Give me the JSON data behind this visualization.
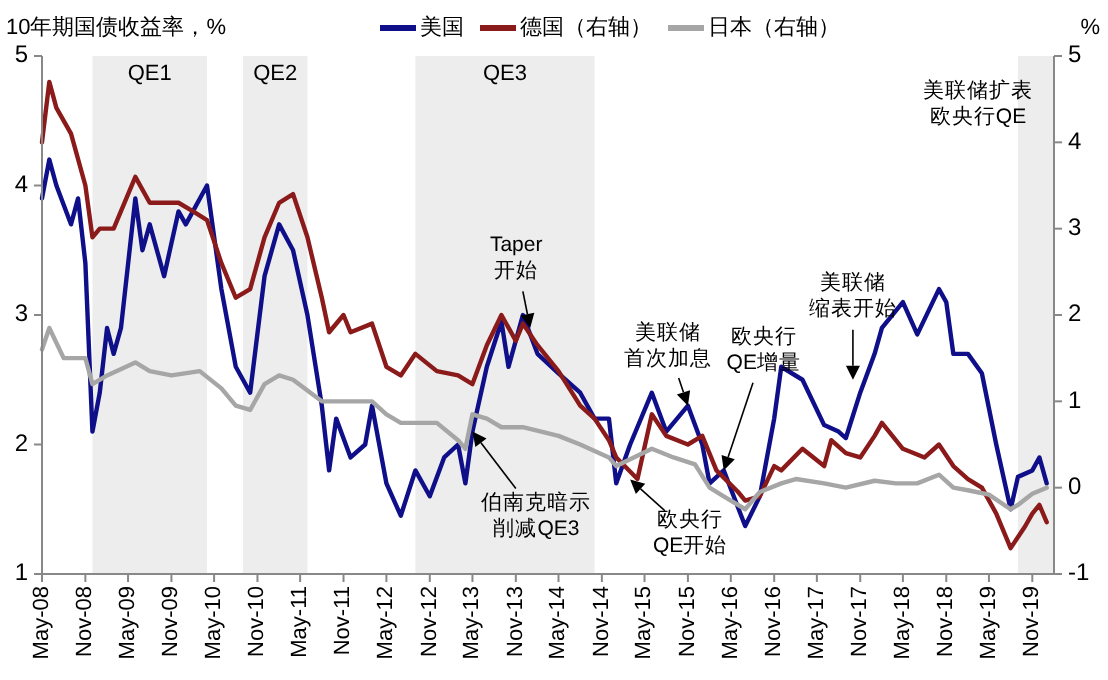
{
  "chart_data": {
    "type": "line",
    "ylabel": "10年期国债收益率，%",
    "y2label": "%",
    "xlim": [
      "2008-05-01",
      "2020-02-01"
    ],
    "xticks": [
      {
        "value": "2008-05",
        "label": "May-08"
      },
      {
        "value": "2008-11",
        "label": "Nov-08"
      },
      {
        "value": "2009-05",
        "label": "May-09"
      },
      {
        "value": "2009-11",
        "label": "Nov-09"
      },
      {
        "value": "2010-05",
        "label": "May-10"
      },
      {
        "value": "2010-11",
        "label": "Nov-10"
      },
      {
        "value": "2011-05",
        "label": "May-11"
      },
      {
        "value": "2011-11",
        "label": "Nov-11"
      },
      {
        "value": "2012-05",
        "label": "May-12"
      },
      {
        "value": "2012-11",
        "label": "Nov-12"
      },
      {
        "value": "2013-05",
        "label": "May-13"
      },
      {
        "value": "2013-11",
        "label": "Nov-13"
      },
      {
        "value": "2014-05",
        "label": "May-14"
      },
      {
        "value": "2014-11",
        "label": "Nov-14"
      },
      {
        "value": "2015-05",
        "label": "May-15"
      },
      {
        "value": "2015-11",
        "label": "Nov-15"
      },
      {
        "value": "2016-05",
        "label": "May-16"
      },
      {
        "value": "2016-11",
        "label": "Nov-16"
      },
      {
        "value": "2017-05",
        "label": "May-17"
      },
      {
        "value": "2017-11",
        "label": "Nov-17"
      },
      {
        "value": "2018-05",
        "label": "May-18"
      },
      {
        "value": "2018-11",
        "label": "Nov-18"
      },
      {
        "value": "2019-05",
        "label": "May-19"
      },
      {
        "value": "2019-11",
        "label": "Nov-19"
      }
    ],
    "ylim": [
      1,
      5
    ],
    "yticks": [
      1,
      2,
      3,
      4,
      5
    ],
    "y2lim": [
      -1,
      5
    ],
    "y2ticks": [
      -1,
      0,
      1,
      2,
      3,
      4,
      5
    ],
    "legend": "top",
    "grid": false,
    "bands": [
      {
        "axis": "x",
        "from": "2008-12",
        "to": "2010-04",
        "label": "QE1",
        "color": "#ededed"
      },
      {
        "axis": "x",
        "from": "2010-09",
        "to": "2011-06",
        "label": "QE2",
        "color": "#ededed"
      },
      {
        "axis": "x",
        "from": "2012-09",
        "to": "2014-10",
        "label": "QE3",
        "color": "#ededed"
      },
      {
        "axis": "x",
        "from": "2019-09",
        "to": "2020-02-01",
        "color": "#ededed"
      }
    ],
    "annotations": [
      {
        "text": "Taper开始",
        "x": "2014-01",
        "y": 2.9
      },
      {
        "text": "伯南克暗示削减QE3",
        "x": "2013-05",
        "y": 2.1
      },
      {
        "text": "美联储首次加息",
        "x": "2015-11",
        "y": 2.3
      },
      {
        "text": "欧央行QE增量",
        "x": "2016-04",
        "y": 1.8
      },
      {
        "text": "美联储缩表开始",
        "x": "2017-10",
        "y": 2.5
      },
      {
        "text": "欧央行QE开始",
        "x": "2015-03",
        "y": 1.73
      },
      "美联储扩表欧央行QE"
    ],
    "series": [
      {
        "name": "美国",
        "color": "#0f0f8a",
        "x": [
          "2008-05",
          "2008-06",
          "2008-07",
          "2008-09",
          "2008-10",
          "2008-11",
          "2008-12",
          "2009-01",
          "2009-02",
          "2009-03",
          "2009-04",
          "2009-06",
          "2009-07",
          "2009-08",
          "2009-10",
          "2009-12",
          "2010-01",
          "2010-04",
          "2010-06",
          "2010-08",
          "2010-10",
          "2010-12",
          "2011-02",
          "2011-04",
          "2011-06",
          "2011-08",
          "2011-09",
          "2011-10",
          "2011-12",
          "2012-02",
          "2012-03",
          "2012-05",
          "2012-07",
          "2012-09",
          "2012-11",
          "2013-01",
          "2013-03",
          "2013-04",
          "2013-05",
          "2013-07",
          "2013-09",
          "2013-10",
          "2013-12",
          "2014-02",
          "2014-05",
          "2014-08",
          "2014-10",
          "2014-12",
          "2015-01",
          "2015-03",
          "2015-06",
          "2015-08",
          "2015-11",
          "2016-01",
          "2016-02",
          "2016-04",
          "2016-07",
          "2016-09",
          "2016-11",
          "2016-12",
          "2017-03",
          "2017-06",
          "2017-08",
          "2017-09",
          "2017-11",
          "2018-01",
          "2018-02",
          "2018-05",
          "2018-07",
          "2018-10",
          "2018-11",
          "2018-12",
          "2019-02",
          "2019-04",
          "2019-06",
          "2019-08",
          "2019-09",
          "2019-11",
          "2019-12",
          "2020-01"
        ],
        "values": [
          3.9,
          4.2,
          4.0,
          3.7,
          3.9,
          3.4,
          2.1,
          2.4,
          2.9,
          2.7,
          2.9,
          3.9,
          3.5,
          3.7,
          3.3,
          3.8,
          3.7,
          4.0,
          3.2,
          2.6,
          2.4,
          3.3,
          3.7,
          3.5,
          3.0,
          2.3,
          1.8,
          2.2,
          1.9,
          2.0,
          2.3,
          1.7,
          1.45,
          1.8,
          1.6,
          1.9,
          2.0,
          1.7,
          2.1,
          2.6,
          2.95,
          2.6,
          3.0,
          2.7,
          2.55,
          2.4,
          2.2,
          2.2,
          1.7,
          2.0,
          2.4,
          2.1,
          2.3,
          2.0,
          1.7,
          1.8,
          1.37,
          1.6,
          2.2,
          2.6,
          2.5,
          2.15,
          2.1,
          2.05,
          2.4,
          2.7,
          2.9,
          3.1,
          2.85,
          3.2,
          3.1,
          2.7,
          2.7,
          2.55,
          2.0,
          1.5,
          1.75,
          1.8,
          1.9,
          1.7
        ]
      },
      {
        "name": "德国（右轴）",
        "color": "#8b1a1a",
        "axis": "y2",
        "x": [
          "2008-05",
          "2008-06",
          "2008-07",
          "2008-09",
          "2008-11",
          "2008-12",
          "2009-01",
          "2009-03",
          "2009-06",
          "2009-08",
          "2009-12",
          "2010-02",
          "2010-04",
          "2010-06",
          "2010-08",
          "2010-10",
          "2010-12",
          "2011-02",
          "2011-04",
          "2011-06",
          "2011-08",
          "2011-09",
          "2011-11",
          "2011-12",
          "2012-03",
          "2012-05",
          "2012-07",
          "2012-09",
          "2012-12",
          "2013-03",
          "2013-05",
          "2013-07",
          "2013-09",
          "2013-11",
          "2013-12",
          "2014-02",
          "2014-05",
          "2014-08",
          "2014-10",
          "2014-12",
          "2015-01",
          "2015-04",
          "2015-06",
          "2015-08",
          "2015-11",
          "2016-01",
          "2016-03",
          "2016-06",
          "2016-07",
          "2016-09",
          "2016-11",
          "2016-12",
          "2017-03",
          "2017-06",
          "2017-07",
          "2017-09",
          "2017-11",
          "2018-01",
          "2018-02",
          "2018-05",
          "2018-08",
          "2018-10",
          "2018-12",
          "2019-02",
          "2019-04",
          "2019-06",
          "2019-08",
          "2019-10",
          "2019-11",
          "2019-12",
          "2020-01"
        ],
        "values": [
          4.0,
          4.7,
          4.4,
          4.1,
          3.5,
          2.9,
          3.0,
          3.0,
          3.6,
          3.3,
          3.3,
          3.2,
          3.1,
          2.6,
          2.2,
          2.3,
          2.9,
          3.3,
          3.4,
          2.9,
          2.2,
          1.8,
          2.0,
          1.8,
          1.9,
          1.4,
          1.3,
          1.55,
          1.35,
          1.3,
          1.2,
          1.65,
          2.0,
          1.7,
          1.9,
          1.65,
          1.35,
          0.95,
          0.8,
          0.55,
          0.35,
          0.1,
          0.85,
          0.6,
          0.5,
          0.6,
          0.2,
          -0.05,
          -0.15,
          -0.1,
          0.25,
          0.2,
          0.45,
          0.25,
          0.55,
          0.4,
          0.35,
          0.6,
          0.75,
          0.45,
          0.35,
          0.5,
          0.25,
          0.1,
          0.0,
          -0.3,
          -0.7,
          -0.45,
          -0.3,
          -0.2,
          -0.4
        ]
      },
      {
        "name": "日本（右轴）",
        "color": "#a6a6a6",
        "axis": "y2",
        "x": [
          "2008-05",
          "2008-06",
          "2008-08",
          "2008-11",
          "2008-12",
          "2009-02",
          "2009-06",
          "2009-08",
          "2009-11",
          "2010-03",
          "2010-06",
          "2010-08",
          "2010-10",
          "2010-12",
          "2011-02",
          "2011-04",
          "2011-08",
          "2011-12",
          "2012-03",
          "2012-05",
          "2012-07",
          "2012-12",
          "2013-03",
          "2013-04",
          "2013-05",
          "2013-07",
          "2013-09",
          "2013-12",
          "2014-05",
          "2014-08",
          "2014-12",
          "2015-01",
          "2015-06",
          "2015-09",
          "2015-12",
          "2016-02",
          "2016-04",
          "2016-07",
          "2016-09",
          "2016-12",
          "2017-02",
          "2017-06",
          "2017-09",
          "2018-01",
          "2018-04",
          "2018-07",
          "2018-10",
          "2018-12",
          "2019-02",
          "2019-05",
          "2019-08",
          "2019-09",
          "2019-11",
          "2020-01"
        ],
        "values": [
          1.6,
          1.85,
          1.5,
          1.5,
          1.2,
          1.3,
          1.45,
          1.35,
          1.3,
          1.35,
          1.15,
          0.95,
          0.9,
          1.2,
          1.3,
          1.25,
          1.0,
          1.0,
          1.0,
          0.85,
          0.75,
          0.75,
          0.55,
          0.45,
          0.85,
          0.8,
          0.7,
          0.7,
          0.6,
          0.5,
          0.35,
          0.25,
          0.45,
          0.35,
          0.27,
          0.0,
          -0.1,
          -0.25,
          -0.05,
          0.05,
          0.1,
          0.05,
          0.0,
          0.08,
          0.05,
          0.05,
          0.15,
          0.0,
          -0.03,
          -0.08,
          -0.25,
          -0.2,
          -0.07,
          0.0
        ]
      }
    ]
  }
}
